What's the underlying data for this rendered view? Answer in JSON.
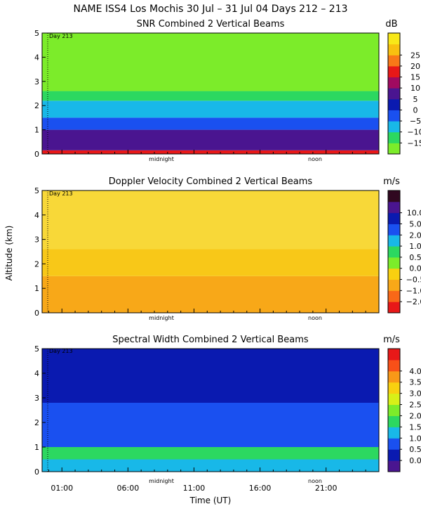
{
  "figure": {
    "title": "NAME ISS4 Los Mochis  30 Jul – 31 Jul 04 Days 212 – 213",
    "ylabel": "Altitude (km)",
    "xlabel": "Time (UT)",
    "x_ticks": [
      "01:00",
      "06:00",
      "11:00",
      "16:00",
      "21:00"
    ],
    "x_tick_hours": [
      1,
      6,
      11,
      16,
      21
    ],
    "day_label": "Day 213",
    "midnight_label": "midnight",
    "noon_label": "noon"
  },
  "chart_data": [
    {
      "type": "heatmap",
      "title": "SNR Combined 2 Vertical Beams",
      "units": "dB",
      "xlabel": "Time (UT)",
      "ylabel": "Altitude (km)",
      "x_range_hours": [
        -0.5,
        25
      ],
      "ylim": [
        0,
        5
      ],
      "y_ticks": [
        "0",
        "1",
        "2",
        "3",
        "4",
        "5"
      ],
      "colorbar_ticks": [
        "−15",
        "−10",
        "−5",
        "0",
        "5",
        "10",
        "15",
        "20",
        "25"
      ],
      "colorbar_colors": [
        "#7cec2a",
        "#2cd860",
        "#18b8e8",
        "#1a50f0",
        "#0a1ab0",
        "#4a1590",
        "#a00a60",
        "#e81818",
        "#f87818",
        "#f8c010",
        "#f8e818"
      ],
      "color_by_height": [
        {
          "from_km": 0.0,
          "to_km": 0.15,
          "color": "#e81818"
        },
        {
          "from_km": 0.15,
          "to_km": 1.0,
          "color": "#4a1590"
        },
        {
          "from_km": 1.0,
          "to_km": 1.5,
          "color": "#1a50f0"
        },
        {
          "from_km": 1.5,
          "to_km": 2.2,
          "color": "#18b8e8"
        },
        {
          "from_km": 2.2,
          "to_km": 2.6,
          "color": "#2cd860"
        },
        {
          "from_km": 2.6,
          "to_km": 5.0,
          "color": "#7cec2a"
        }
      ]
    },
    {
      "type": "heatmap",
      "title": "Doppler Velocity Combined 2 Vertical Beams",
      "units": "m/s",
      "xlabel": "Time (UT)",
      "ylabel": "Altitude (km)",
      "x_range_hours": [
        -0.5,
        25
      ],
      "ylim": [
        0,
        5
      ],
      "y_ticks": [
        "0",
        "1",
        "2",
        "3",
        "4",
        "5"
      ],
      "colorbar_ticks": [
        "−2.0",
        "−1.0",
        "−0.5",
        "0.0",
        "0.5",
        "1.0",
        "2.0",
        "5.0",
        "10.0"
      ],
      "colorbar_colors": [
        "#e81818",
        "#f86818",
        "#f8a818",
        "#f8d010",
        "#7cec2a",
        "#2cd860",
        "#18b8e8",
        "#1a50f0",
        "#0a1ab0",
        "#4a1590",
        "#300820"
      ],
      "color_by_height": [
        {
          "from_km": 0.0,
          "to_km": 1.5,
          "color": "#f8a818"
        },
        {
          "from_km": 1.5,
          "to_km": 2.6,
          "color": "#f8c818"
        },
        {
          "from_km": 2.6,
          "to_km": 5.0,
          "color": "#f8d838"
        }
      ]
    },
    {
      "type": "heatmap",
      "title": "Spectral Width Combined 2 Vertical Beams",
      "units": "m/s",
      "xlabel": "Time (UT)",
      "ylabel": "Altitude (km)",
      "x_range_hours": [
        -0.5,
        25
      ],
      "ylim": [
        0,
        5
      ],
      "y_ticks": [
        "0",
        "1",
        "2",
        "3",
        "4",
        "5"
      ],
      "colorbar_ticks": [
        "0.0",
        "0.5",
        "1.0",
        "1.5",
        "2.0",
        "2.5",
        "3.0",
        "3.5",
        "4.0"
      ],
      "colorbar_colors": [
        "#4a1590",
        "#0a1ab0",
        "#1a50f0",
        "#18b8e8",
        "#2cd860",
        "#7cec2a",
        "#d8f018",
        "#f8d010",
        "#f89818",
        "#f85018",
        "#e81818"
      ],
      "color_by_height": [
        {
          "from_km": 0.0,
          "to_km": 0.5,
          "color": "#18b8e8"
        },
        {
          "from_km": 0.5,
          "to_km": 1.0,
          "color": "#2cd860"
        },
        {
          "from_km": 1.0,
          "to_km": 2.8,
          "color": "#1a50f0"
        },
        {
          "from_km": 2.8,
          "to_km": 5.0,
          "color": "#0a1ab0"
        }
      ]
    }
  ]
}
